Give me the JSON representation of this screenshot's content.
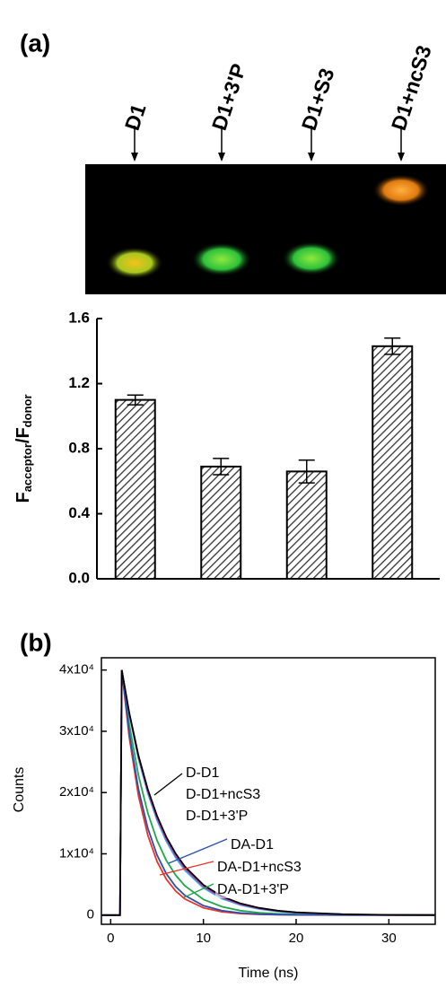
{
  "gel": {
    "lanes": [
      "D1",
      "D1+3'P",
      "D1+S3",
      "D1+ncS3"
    ]
  },
  "chart_data": [
    {
      "type": "bar",
      "panel": "(a)",
      "categories": [
        null,
        null,
        null,
        null
      ],
      "values": [
        1.1,
        0.69,
        0.66,
        1.43
      ],
      "errors": [
        0.03,
        0.05,
        0.07,
        0.05
      ],
      "ylabel": [
        "F",
        "acceptor",
        "/F",
        "donor"
      ],
      "ylim": [
        0,
        1.6
      ],
      "yticks": [
        {
          "value": 0,
          "label": "0.0"
        },
        0.4,
        0.8,
        1.2,
        1.6
      ],
      "color": "#000000",
      "grid": false
    },
    {
      "type": "line",
      "panel": "(b)",
      "xlabel": "Time (ns)",
      "ylabel": "Counts",
      "x": [
        -1,
        1,
        1.2,
        2,
        3,
        4,
        5,
        6,
        7,
        8,
        10,
        12,
        14,
        16,
        18,
        20,
        25,
        30,
        35
      ],
      "xlim": [
        -1,
        35
      ],
      "xticks": [
        0,
        10,
        20,
        30
      ],
      "ylim": [
        -1500,
        42000
      ],
      "yticks": [
        0,
        {
          "value": 10000,
          "label": "1x10⁴"
        },
        {
          "value": 20000,
          "label": "2x10⁴"
        },
        {
          "value": 30000,
          "label": "3x10⁴"
        },
        {
          "value": 40000,
          "label": "4x10⁴"
        }
      ],
      "grid": false,
      "series": [
        {
          "name": "D-D1",
          "color": "#000000",
          "values": [
            0,
            0,
            40000,
            33050,
            26057,
            20535,
            16186,
            12757,
            10054,
            7924,
            4922,
            3057,
            1899,
            1179,
            733,
            455,
            138,
            42,
            13
          ]
        },
        {
          "name": "D-D1+ncS3",
          "color": "#cc33aa",
          "values": [
            0,
            0,
            40000,
            32900,
            25780,
            20200,
            15830,
            12400,
            9720,
            7610,
            4670,
            2870,
            1760,
            1080,
            665,
            410,
            120,
            36,
            11
          ]
        },
        {
          "name": "D-D1+3'P",
          "color": "#29b6e8",
          "values": [
            0,
            0,
            40000,
            32749,
            25505,
            19863,
            15469,
            12048,
            9383,
            7307,
            4432,
            2689,
            1631,
            989,
            600,
            364,
            104,
            30,
            9
          ]
        },
        {
          "name": "DA-D1",
          "color": "#2a4fb0",
          "values": [
            0,
            0,
            40000,
            29752,
            20535,
            14180,
            9791,
            6760,
            4668,
            3223,
            1537,
            733,
            350,
            167,
            80,
            38,
            6,
            1,
            0
          ]
        },
        {
          "name": "DA-D1+ncS3",
          "color": "#e8332a",
          "values": [
            0,
            0,
            40000,
            29046,
            19470,
            13051,
            8748,
            5864,
            3931,
            2635,
            1184,
            532,
            239,
            107,
            48,
            22,
            3,
            0,
            0
          ]
        },
        {
          "name": "DA-D1+3'P",
          "color": "#1fa84a",
          "values": [
            0,
            0,
            40000,
            31152,
            22793,
            16675,
            12200,
            8925,
            6529,
            4777,
            2557,
            1369,
            733,
            392,
            210,
            112,
            24,
            5,
            1
          ]
        }
      ]
    }
  ]
}
